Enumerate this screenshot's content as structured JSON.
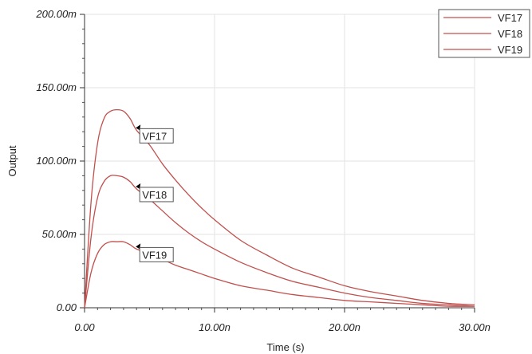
{
  "chart_data": {
    "type": "line",
    "title": "",
    "xlabel": "Time (s)",
    "ylabel": "Output",
    "xlim": [
      0,
      30
    ],
    "ylim": [
      0,
      200
    ],
    "x_unit": "n",
    "y_unit": "m",
    "x_ticks": [
      "0.00",
      "10.00n",
      "20.00n",
      "30.00n"
    ],
    "y_ticks": [
      "0.00",
      "50.00m",
      "100.00m",
      "150.00m",
      "200.00m"
    ],
    "grid": true,
    "legend_position": "top-right",
    "line_color": "#c0504d",
    "x": [
      0,
      0.5,
      1,
      1.5,
      2,
      2.5,
      3,
      3.5,
      4,
      5,
      6,
      7,
      8,
      9,
      10,
      12,
      14,
      16,
      18,
      20,
      22,
      24,
      26,
      28,
      30
    ],
    "series": [
      {
        "name": "VF17",
        "label": "VF17",
        "values": [
          0,
          72,
          112,
          129,
          134,
          135,
          134,
          129,
          121,
          111,
          98,
          87,
          77,
          68,
          60,
          46,
          36,
          27,
          21,
          15,
          11,
          8,
          5,
          3,
          2
        ]
      },
      {
        "name": "VF18",
        "label": "VF18",
        "values": [
          0,
          48,
          75,
          86,
          90,
          90,
          89,
          86,
          81,
          74,
          66,
          58,
          51,
          45,
          40,
          31,
          24,
          18,
          14,
          10,
          7,
          5,
          3,
          2,
          1
        ]
      },
      {
        "name": "VF19",
        "label": "VF19",
        "values": [
          0,
          24,
          37,
          43,
          45,
          45,
          45,
          43,
          40,
          37,
          33,
          29,
          26,
          23,
          20,
          15,
          12,
          9,
          7,
          5,
          4,
          3,
          2,
          1,
          1
        ]
      }
    ]
  }
}
